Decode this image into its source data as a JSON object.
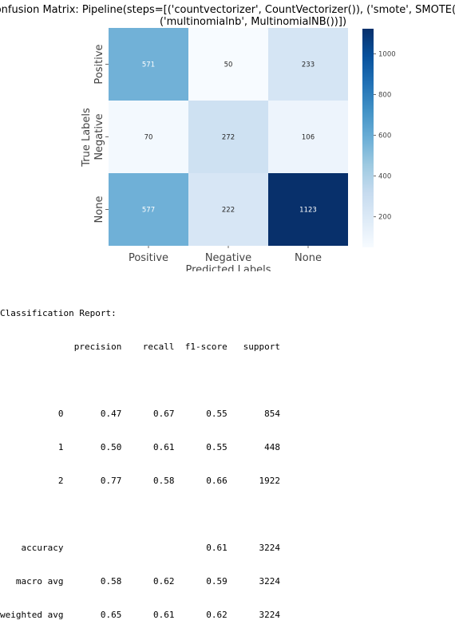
{
  "chart_data": {
    "type": "heatmap",
    "title": "Confusion Matrix: Pipeline(steps=[('countvectorizer', CountVectorizer()), ('smote', SMOTE()),",
    "title_line2": "('multinomialnb', MultinomialNB())])",
    "xlabel": "Predicted Labels",
    "ylabel": "True Labels",
    "x_categories": [
      "Positive",
      "Negative",
      "None"
    ],
    "y_categories": [
      "Positive",
      "Negative",
      "None"
    ],
    "values": [
      [
        571,
        50,
        233
      ],
      [
        70,
        272,
        106
      ],
      [
        577,
        222,
        1123
      ]
    ],
    "colormap": "Blues",
    "colorbar": {
      "ticks": [
        200,
        400,
        600,
        800,
        1000
      ],
      "range": [
        50,
        1123
      ]
    }
  },
  "report": {
    "heading": "Classification Report:",
    "lines": [
      "              precision    recall  f1-score   support",
      "",
      "           0       0.47      0.67      0.55       854",
      "           1       0.50      0.61      0.55       448",
      "           2       0.77      0.58      0.66      1922",
      "",
      "    accuracy                           0.61      3224",
      "   macro avg       0.58      0.62      0.59      3224",
      "weighted avg       0.65      0.61      0.62      3224"
    ]
  }
}
